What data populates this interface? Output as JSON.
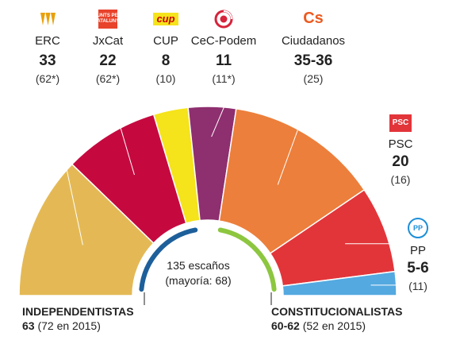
{
  "chart_data": {
    "type": "hemicycle",
    "total_seats": 135,
    "center_text": {
      "line1": "135 escaños",
      "line2": "(mayoría: 68)"
    },
    "parties": [
      {
        "name": "ERC",
        "seats": 33,
        "seats_label": "33",
        "previous_label": "(62*)",
        "color": "#e4b955"
      },
      {
        "name": "JxCat",
        "seats": 22,
        "seats_label": "22",
        "previous_label": "(62*)",
        "color": "#c5093f"
      },
      {
        "name": "CUP",
        "seats": 8,
        "seats_label": "8",
        "previous_label": "(10)",
        "color": "#f5e31b"
      },
      {
        "name": "CeC-Podem",
        "seats": 11,
        "seats_label": "11",
        "previous_label": "(11*)",
        "color": "#8e2f6f"
      },
      {
        "name": "Ciudadanos",
        "seats": 35.5,
        "seats_label": "35-36",
        "previous_label": "(25)",
        "color": "#ec7f3b"
      },
      {
        "name": "PSC",
        "seats": 20,
        "seats_label": "20",
        "previous_label": "(16)",
        "color": "#e2353a"
      },
      {
        "name": "PP",
        "seats": 5.5,
        "seats_label": "5-6",
        "previous_label": "(11)",
        "color": "#54a9e0"
      }
    ],
    "blocs": [
      {
        "title": "INDEPENDENTISTAS",
        "seats_label": "63",
        "previous_label": "(72 en 2015)",
        "color": "#1d5f9a"
      },
      {
        "title": "CONSTITUCIONALISTAS",
        "seats_label": "60-62",
        "previous_label": "(52 en 2015)",
        "color": "#8dc63f"
      }
    ]
  },
  "logos": {
    "jxcat_text": "JUNTS PER CATALUNYA",
    "cup_text": "cup",
    "cs_text": "Cs",
    "psc_text": "PSC",
    "pp_text": "PP"
  }
}
